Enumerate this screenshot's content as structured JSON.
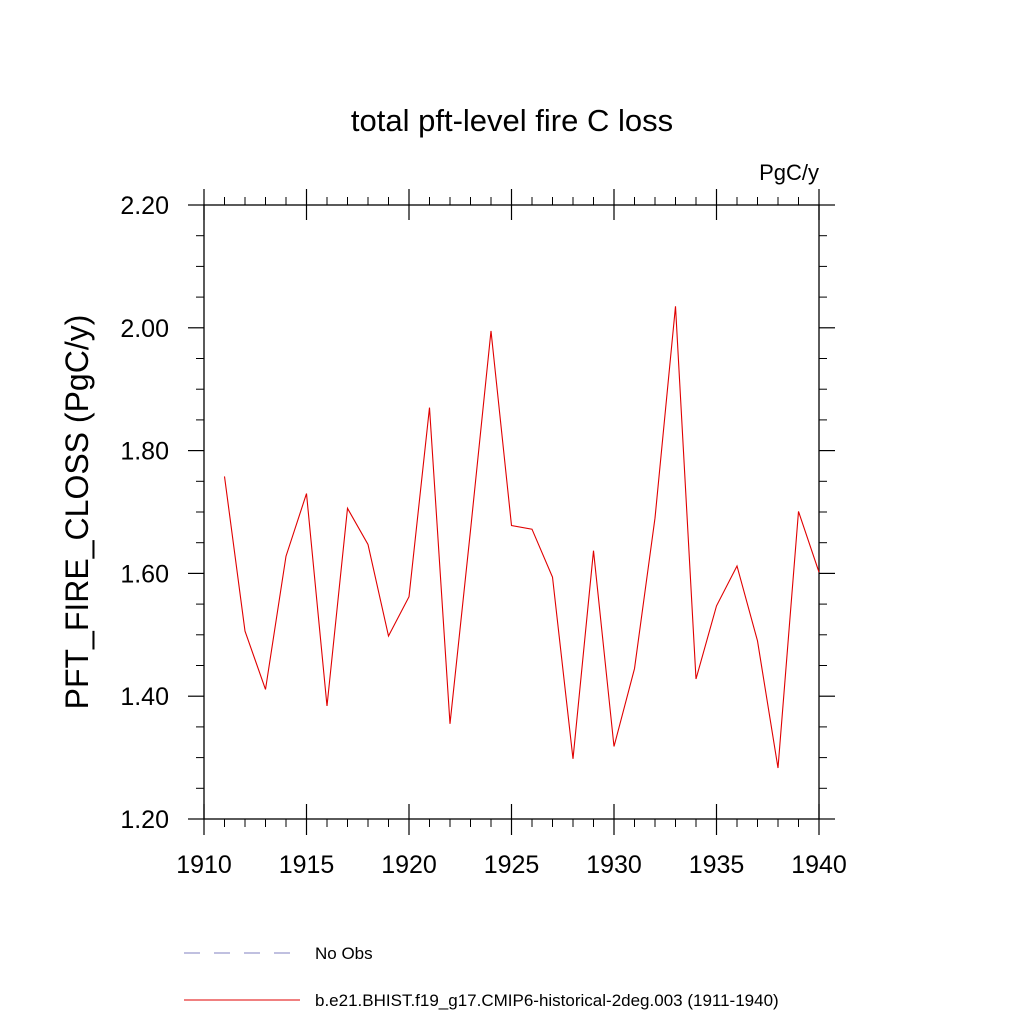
{
  "chart_data": {
    "type": "line",
    "title": "total pft-level fire C loss",
    "units": "PgC/y",
    "ylabel": "PFT_FIRE_CLOSS  (PgC/y)",
    "xlabel": "",
    "xlim": [
      1910,
      1940
    ],
    "ylim": [
      1.2,
      2.2
    ],
    "x_ticks": [
      1910,
      1915,
      1920,
      1925,
      1930,
      1935,
      1940
    ],
    "x_tick_labels": [
      "1910",
      "1915",
      "1920",
      "1925",
      "1930",
      "1935",
      "1940"
    ],
    "y_ticks": [
      1.2,
      1.4,
      1.6,
      1.8,
      2.0,
      2.2
    ],
    "y_tick_labels": [
      "1.20",
      "1.40",
      "1.60",
      "1.80",
      "2.00",
      "2.20"
    ],
    "grid": false,
    "legend_position": "bottom",
    "series": [
      {
        "name": "No Obs",
        "color": "#8080c0",
        "dash": "dashed",
        "x": [],
        "y": []
      },
      {
        "name": "b.e21.BHIST.f19_g17.CMIP6-historical-2deg.003 (1911-1940)",
        "color": "#e00000",
        "dash": "solid",
        "x": [
          1911,
          1912,
          1913,
          1914,
          1915,
          1916,
          1917,
          1918,
          1919,
          1920,
          1921,
          1922,
          1923,
          1924,
          1925,
          1926,
          1927,
          1928,
          1929,
          1930,
          1931,
          1932,
          1933,
          1934,
          1935,
          1936,
          1937,
          1938,
          1939,
          1940
        ],
        "y": [
          1.758,
          1.506,
          1.411,
          1.628,
          1.73,
          1.384,
          1.706,
          1.647,
          1.498,
          1.562,
          1.87,
          1.355,
          1.67,
          1.995,
          1.678,
          1.672,
          1.594,
          1.298,
          1.637,
          1.318,
          1.445,
          1.69,
          2.035,
          1.428,
          1.547,
          1.612,
          1.49,
          1.283,
          1.701,
          1.602
        ]
      }
    ]
  }
}
